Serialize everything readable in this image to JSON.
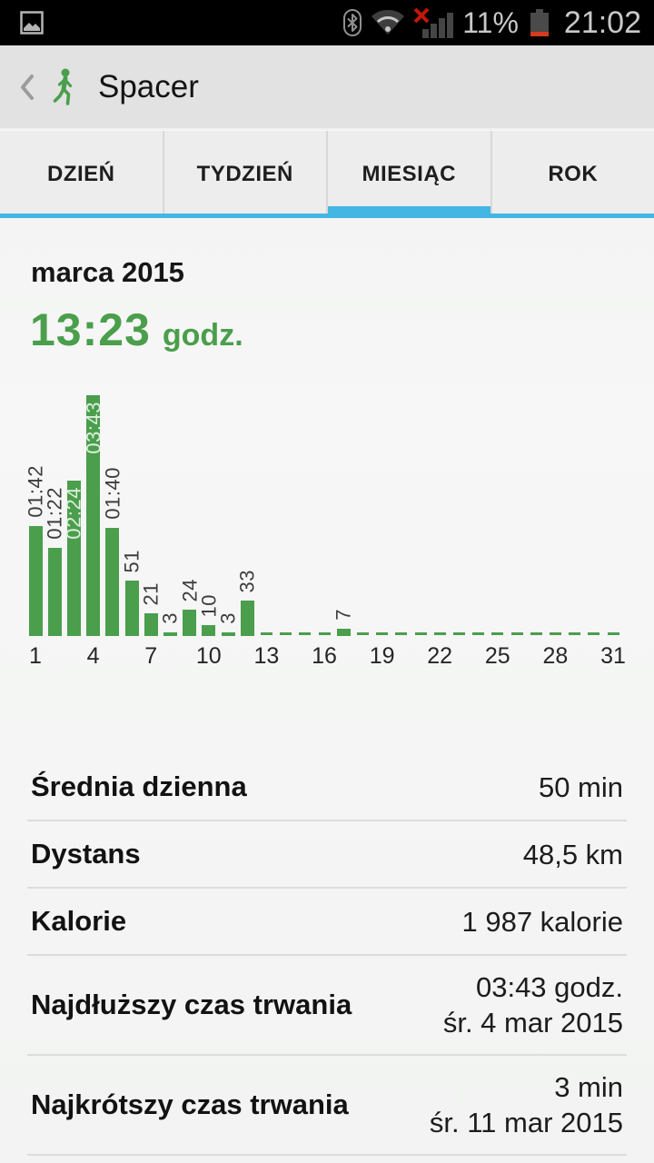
{
  "status_bar": {
    "time": "21:02",
    "battery": "11%",
    "icons": [
      "image-notification",
      "bluetooth",
      "wifi",
      "cell-signal-error",
      "battery-low"
    ]
  },
  "header": {
    "title": "Spacer",
    "back_label": "back",
    "activity_icon": "walking-person"
  },
  "tabs": [
    {
      "label": "DZIEŃ",
      "active": false
    },
    {
      "label": "TYDZIEŃ",
      "active": false
    },
    {
      "label": "MIESIĄC",
      "active": true
    },
    {
      "label": "ROK",
      "active": false
    }
  ],
  "summary": {
    "month": "marca 2015",
    "total_time": "13:23",
    "total_unit": "godz."
  },
  "chart_data": {
    "type": "bar",
    "title": "marca 2015",
    "unit": "minutes",
    "bar_color": "#4a9e4c",
    "x_ticks": [
      1,
      4,
      7,
      10,
      13,
      16,
      19,
      22,
      25,
      28,
      31
    ],
    "days": [
      {
        "day": 1,
        "minutes": 102,
        "label": "01:42",
        "label_inside": false
      },
      {
        "day": 2,
        "minutes": 82,
        "label": "01:22",
        "label_inside": false
      },
      {
        "day": 3,
        "minutes": 144,
        "label": "02:24",
        "label_inside": true
      },
      {
        "day": 4,
        "minutes": 223,
        "label": "03:43",
        "label_inside": true
      },
      {
        "day": 5,
        "minutes": 100,
        "label": "01:40",
        "label_inside": false
      },
      {
        "day": 6,
        "minutes": 51,
        "label": "51",
        "label_inside": false
      },
      {
        "day": 7,
        "minutes": 21,
        "label": "21",
        "label_inside": false
      },
      {
        "day": 8,
        "minutes": 3,
        "label": "3",
        "label_inside": false
      },
      {
        "day": 9,
        "minutes": 24,
        "label": "24",
        "label_inside": false
      },
      {
        "day": 10,
        "minutes": 10,
        "label": "10",
        "label_inside": false
      },
      {
        "day": 11,
        "minutes": 3,
        "label": "3",
        "label_inside": false
      },
      {
        "day": 12,
        "minutes": 33,
        "label": "33",
        "label_inside": false
      },
      {
        "day": 13,
        "minutes": 0
      },
      {
        "day": 14,
        "minutes": 0
      },
      {
        "day": 15,
        "minutes": 0
      },
      {
        "day": 16,
        "minutes": 0
      },
      {
        "day": 17,
        "minutes": 7,
        "label": "7",
        "label_inside": false
      },
      {
        "day": 18,
        "minutes": 0
      },
      {
        "day": 19,
        "minutes": 0
      },
      {
        "day": 20,
        "minutes": 0
      },
      {
        "day": 21,
        "minutes": 0
      },
      {
        "day": 22,
        "minutes": 0
      },
      {
        "day": 23,
        "minutes": 0
      },
      {
        "day": 24,
        "minutes": 0
      },
      {
        "day": 25,
        "minutes": 0
      },
      {
        "day": 26,
        "minutes": 0
      },
      {
        "day": 27,
        "minutes": 0
      },
      {
        "day": 28,
        "minutes": 0
      },
      {
        "day": 29,
        "minutes": 0
      },
      {
        "day": 30,
        "minutes": 0
      },
      {
        "day": 31,
        "minutes": 0
      }
    ]
  },
  "stats": [
    {
      "label": "Średnia dzienna",
      "value": "50 min"
    },
    {
      "label": "Dystans",
      "value": "48,5 km"
    },
    {
      "label": "Kalorie",
      "value": "1 987 kalorie"
    },
    {
      "label": "Najdłuższy czas trwania",
      "value": "03:43 godz.",
      "sub": "śr. 4 mar 2015"
    },
    {
      "label": "Najkrótszy czas trwania",
      "value": "3 min",
      "sub": "śr. 11 mar 2015"
    }
  ],
  "colors": {
    "accent_green": "#4a9e4c",
    "accent_blue": "#44b6e4",
    "status_bg": "#000000"
  }
}
